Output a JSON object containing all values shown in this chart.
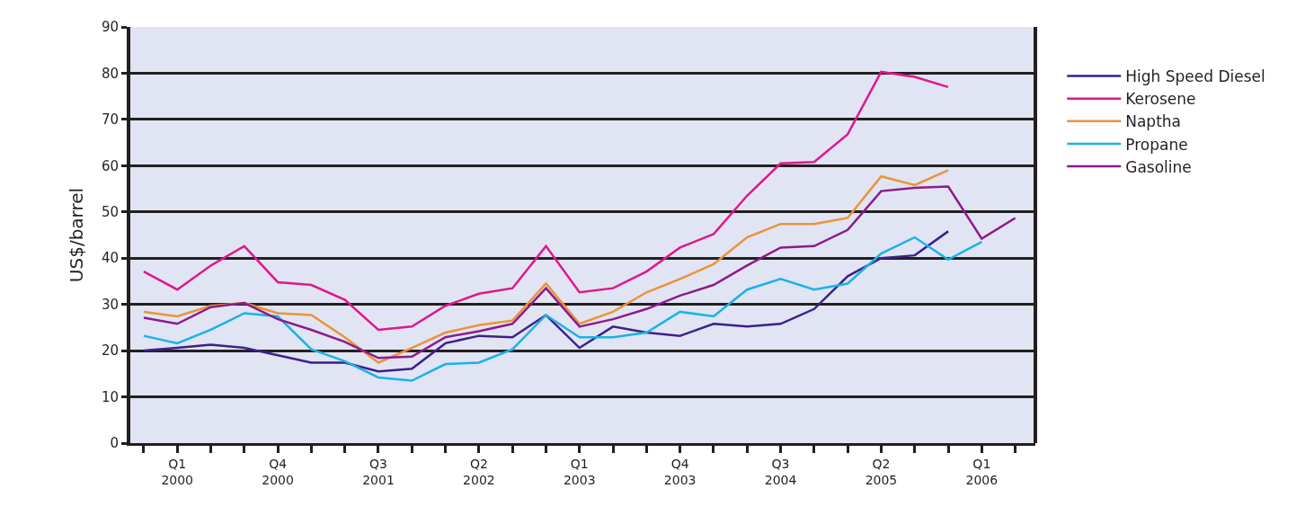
{
  "chart_data": {
    "type": "line",
    "ylabel": "US$/barrel",
    "categories": [
      null,
      "Q1\n2000",
      null,
      null,
      "Q4\n2000",
      null,
      null,
      "Q3\n2001",
      null,
      null,
      "Q2\n2002",
      null,
      null,
      "Q1\n2003",
      null,
      null,
      "Q4\n2003",
      null,
      null,
      "Q3\n2004",
      null,
      null,
      "Q2\n2005",
      null,
      null,
      "Q1\n2006",
      null
    ],
    "ylim": [
      0,
      90
    ],
    "yticks": [
      0,
      10,
      20,
      30,
      40,
      50,
      60,
      70,
      80,
      90
    ],
    "grid": "y",
    "legend": "right",
    "marker": "none",
    "line_style": "solid",
    "series": [
      {
        "name": "High Speed Diesel",
        "color": "#3d1f8c",
        "values": [
          20.0,
          20.6,
          21.3,
          20.6,
          19.0,
          17.4,
          17.4,
          15.5,
          16.1,
          21.6,
          23.2,
          22.9,
          27.7,
          20.6,
          25.2,
          23.9,
          23.2,
          25.8,
          25.2,
          25.8,
          29.0,
          36.1,
          40.0,
          40.6,
          45.8,
          null,
          null
        ]
      },
      {
        "name": "Kerosene",
        "color": "#e0178c",
        "values": [
          37.1,
          33.2,
          38.4,
          42.6,
          34.8,
          34.2,
          31.0,
          24.5,
          25.2,
          29.7,
          32.3,
          33.5,
          42.6,
          32.6,
          33.5,
          37.1,
          42.3,
          45.2,
          53.5,
          60.5,
          60.8,
          66.8,
          80.3,
          79.2,
          77.0,
          null,
          null
        ]
      },
      {
        "name": "Naptha",
        "color": "#ea9437",
        "values": [
          28.4,
          27.4,
          29.7,
          30.3,
          28.1,
          27.7,
          22.9,
          17.4,
          20.6,
          23.9,
          25.5,
          26.5,
          34.5,
          25.8,
          28.4,
          32.6,
          35.5,
          38.7,
          44.5,
          47.4,
          47.4,
          48.7,
          57.7,
          55.8,
          59.0,
          null,
          null
        ]
      },
      {
        "name": "Propane",
        "color": "#1ab2e8",
        "values": [
          23.2,
          21.6,
          24.5,
          28.1,
          27.4,
          20.3,
          17.7,
          14.2,
          13.5,
          17.1,
          17.4,
          20.3,
          27.7,
          22.9,
          22.9,
          23.9,
          28.4,
          27.4,
          33.2,
          35.5,
          33.2,
          34.5,
          41.0,
          44.5,
          39.7,
          43.5,
          null
        ]
      },
      {
        "name": "Gasoline",
        "color": "#8c1a8c",
        "values": [
          27.1,
          25.8,
          29.4,
          30.3,
          26.8,
          24.5,
          21.9,
          18.4,
          18.7,
          22.9,
          24.2,
          25.8,
          33.5,
          25.2,
          26.8,
          29.0,
          31.9,
          34.2,
          38.4,
          42.3,
          42.6,
          46.1,
          54.5,
          55.2,
          55.5,
          44.2,
          48.7
        ]
      }
    ]
  }
}
